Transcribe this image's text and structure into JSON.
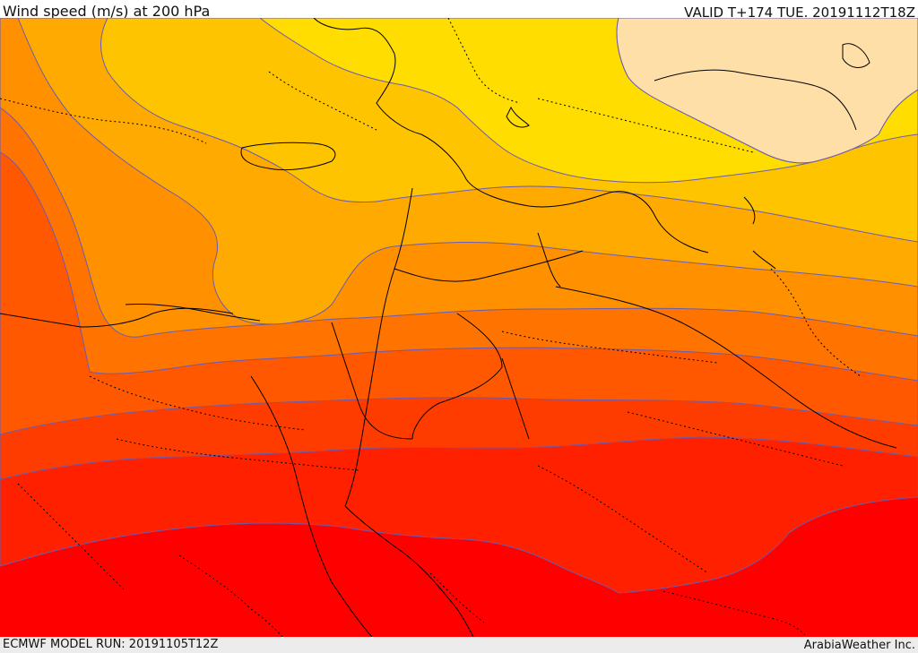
{
  "header": {
    "title": "Wind speed (m/s) at 200 hPa",
    "valid": "VALID T+174 TUE. 20191112T18Z"
  },
  "footer": {
    "model_run": "ECMWF MODEL RUN: 20191105T12Z",
    "credit": "ArabiaWeather Inc."
  },
  "map": {
    "field": "wind-speed-200hPa",
    "colors": {
      "c1": "#ffdfa8",
      "c2": "#ffff00",
      "c3": "#ffdd00",
      "c4": "#ffc400",
      "c5": "#ffaa00",
      "c6": "#ff9000",
      "c7": "#ff7400",
      "c8": "#ff5800",
      "c9": "#ff3c00",
      "c10": "#ff2000",
      "c11": "#ff0000",
      "contour": "#6a5cb0",
      "border": "#000000"
    }
  }
}
